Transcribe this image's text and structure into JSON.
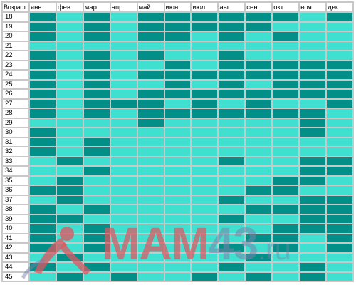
{
  "table": {
    "corner_label": "Возраст",
    "months": [
      "янв",
      "фев",
      "мар",
      "апр",
      "май",
      "июн",
      "июл",
      "авг",
      "сен",
      "окт",
      "ноя",
      "дек"
    ],
    "colors": {
      "light": "#40e0d0",
      "dark": "#018f87"
    },
    "rows": [
      {
        "age": "18",
        "cells": [
          "d",
          "l",
          "d",
          "l",
          "d",
          "d",
          "d",
          "d",
          "d",
          "d",
          "l",
          "d"
        ]
      },
      {
        "age": "19",
        "cells": [
          "d",
          "l",
          "d",
          "l",
          "d",
          "d",
          "d",
          "d",
          "d",
          "l",
          "l",
          "l"
        ]
      },
      {
        "age": "20",
        "cells": [
          "d",
          "l",
          "d",
          "l",
          "d",
          "d",
          "l",
          "d",
          "l",
          "d",
          "l",
          "l"
        ]
      },
      {
        "age": "21",
        "cells": [
          "l",
          "l",
          "l",
          "l",
          "l",
          "l",
          "l",
          "l",
          "l",
          "l",
          "l",
          "l"
        ]
      },
      {
        "age": "22",
        "cells": [
          "d",
          "l",
          "d",
          "l",
          "d",
          "l",
          "l",
          "d",
          "l",
          "l",
          "l",
          "l"
        ]
      },
      {
        "age": "23",
        "cells": [
          "d",
          "l",
          "d",
          "l",
          "l",
          "d",
          "l",
          "d",
          "d",
          "d",
          "d",
          "d"
        ]
      },
      {
        "age": "24",
        "cells": [
          "d",
          "l",
          "d",
          "l",
          "d",
          "d",
          "d",
          "d",
          "d",
          "d",
          "d",
          "d"
        ]
      },
      {
        "age": "25",
        "cells": [
          "d",
          "l",
          "d",
          "l",
          "l",
          "d",
          "l",
          "d",
          "l",
          "d",
          "d",
          "d"
        ]
      },
      {
        "age": "26",
        "cells": [
          "d",
          "l",
          "d",
          "l",
          "d",
          "d",
          "d",
          "d",
          "d",
          "d",
          "d",
          "d"
        ]
      },
      {
        "age": "27",
        "cells": [
          "d",
          "l",
          "d",
          "d",
          "d",
          "l",
          "d",
          "l",
          "d",
          "l",
          "l",
          "d"
        ]
      },
      {
        "age": "28",
        "cells": [
          "d",
          "l",
          "d",
          "l",
          "d",
          "d",
          "d",
          "d",
          "d",
          "d",
          "d",
          "l"
        ]
      },
      {
        "age": "29",
        "cells": [
          "l",
          "l",
          "l",
          "l",
          "d",
          "l",
          "l",
          "l",
          "l",
          "l",
          "d",
          "l"
        ]
      },
      {
        "age": "30",
        "cells": [
          "d",
          "l",
          "l",
          "l",
          "l",
          "l",
          "l",
          "l",
          "l",
          "l",
          "d",
          "l"
        ]
      },
      {
        "age": "31",
        "cells": [
          "d",
          "l",
          "d",
          "l",
          "l",
          "l",
          "l",
          "l",
          "l",
          "l",
          "l",
          "l"
        ]
      },
      {
        "age": "32",
        "cells": [
          "d",
          "l",
          "d",
          "l",
          "l",
          "l",
          "l",
          "l",
          "l",
          "l",
          "l",
          "l"
        ]
      },
      {
        "age": "33",
        "cells": [
          "l",
          "d",
          "l",
          "l",
          "l",
          "l",
          "l",
          "d",
          "l",
          "l",
          "d",
          "d"
        ]
      },
      {
        "age": "34",
        "cells": [
          "l",
          "l",
          "d",
          "l",
          "l",
          "l",
          "l",
          "l",
          "l",
          "l",
          "d",
          "d"
        ]
      },
      {
        "age": "35",
        "cells": [
          "l",
          "d",
          "l",
          "l",
          "l",
          "l",
          "l",
          "l",
          "l",
          "d",
          "d",
          "l"
        ]
      },
      {
        "age": "36",
        "cells": [
          "d",
          "d",
          "l",
          "l",
          "l",
          "l",
          "l",
          "l",
          "d",
          "d",
          "l",
          "l"
        ]
      },
      {
        "age": "37",
        "cells": [
          "l",
          "d",
          "l",
          "l",
          "l",
          "l",
          "l",
          "d",
          "l",
          "l",
          "d",
          "d"
        ]
      },
      {
        "age": "38",
        "cells": [
          "d",
          "l",
          "d",
          "l",
          "l",
          "l",
          "l",
          "l",
          "d",
          "d",
          "d",
          "d"
        ]
      },
      {
        "age": "39",
        "cells": [
          "d",
          "d",
          "l",
          "l",
          "l",
          "l",
          "l",
          "d",
          "l",
          "l",
          "d",
          "d"
        ]
      },
      {
        "age": "40",
        "cells": [
          "d",
          "l",
          "d",
          "l",
          "l",
          "l",
          "l",
          "l",
          "l",
          "d",
          "d",
          "d"
        ]
      },
      {
        "age": "41",
        "cells": [
          "d",
          "l",
          "d",
          "l",
          "l",
          "l",
          "l",
          "l",
          "d",
          "d",
          "l",
          "d"
        ]
      },
      {
        "age": "42",
        "cells": [
          "d",
          "l",
          "d",
          "l",
          "l",
          "l",
          "l",
          "d",
          "l",
          "d",
          "l",
          "d"
        ]
      },
      {
        "age": "43",
        "cells": [
          "l",
          "d",
          "l",
          "l",
          "l",
          "l",
          "l",
          "l",
          "d",
          "l",
          "l",
          "l"
        ]
      },
      {
        "age": "44",
        "cells": [
          "d",
          "l",
          "d",
          "l",
          "l",
          "l",
          "l",
          "d",
          "l",
          "l",
          "d",
          "l"
        ]
      },
      {
        "age": "45",
        "cells": [
          "l",
          "d",
          "l",
          "d",
          "l",
          "l",
          "d",
          "l",
          "d",
          "l",
          "d",
          "l"
        ]
      }
    ]
  },
  "watermark": {
    "brand": "MAM",
    "number": "43",
    "suffix": ".ru",
    "logo_icon": "stork-icon",
    "color": "#e25460"
  }
}
